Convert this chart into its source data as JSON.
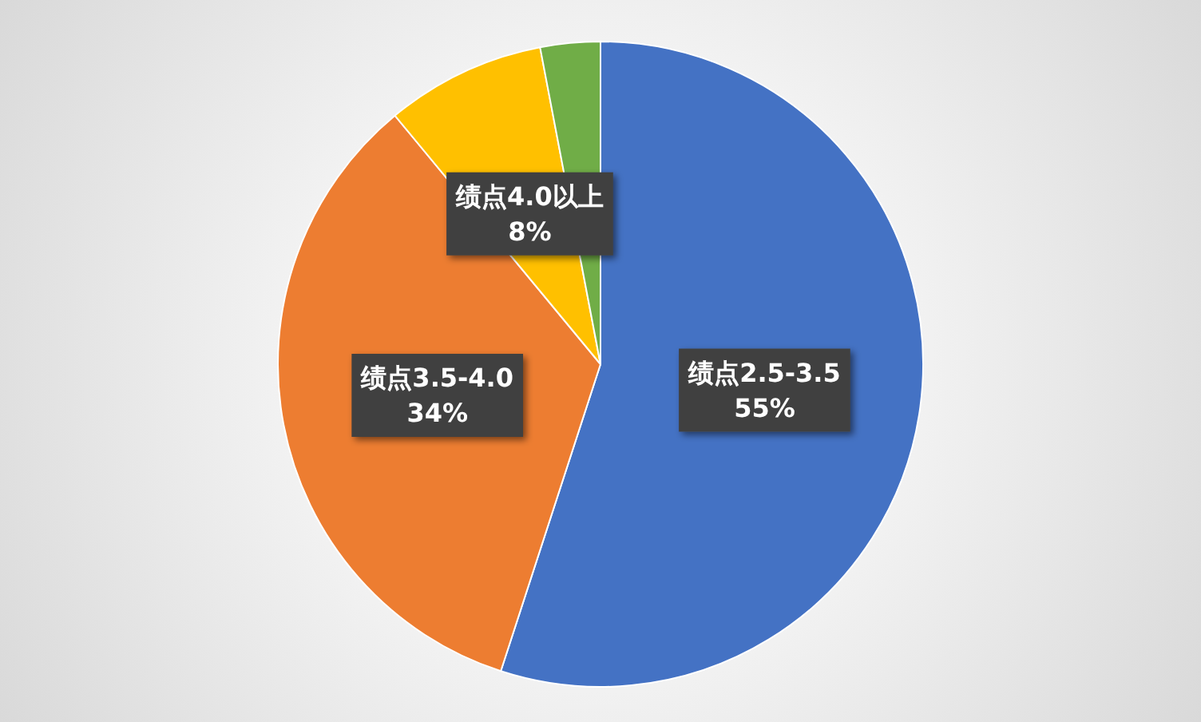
{
  "chart_data": {
    "type": "pie",
    "categories": [
      "绩点2.5-3.5",
      "绩点3.5-4.0",
      "绩点4.0以上",
      null
    ],
    "values": [
      55,
      34,
      8,
      3
    ],
    "colors": [
      "#4472c4",
      "#ed7d31",
      "#ffc000",
      "#70ad47"
    ],
    "value_labels": [
      "55%",
      "34%",
      "8%",
      null
    ],
    "legend": false
  }
}
